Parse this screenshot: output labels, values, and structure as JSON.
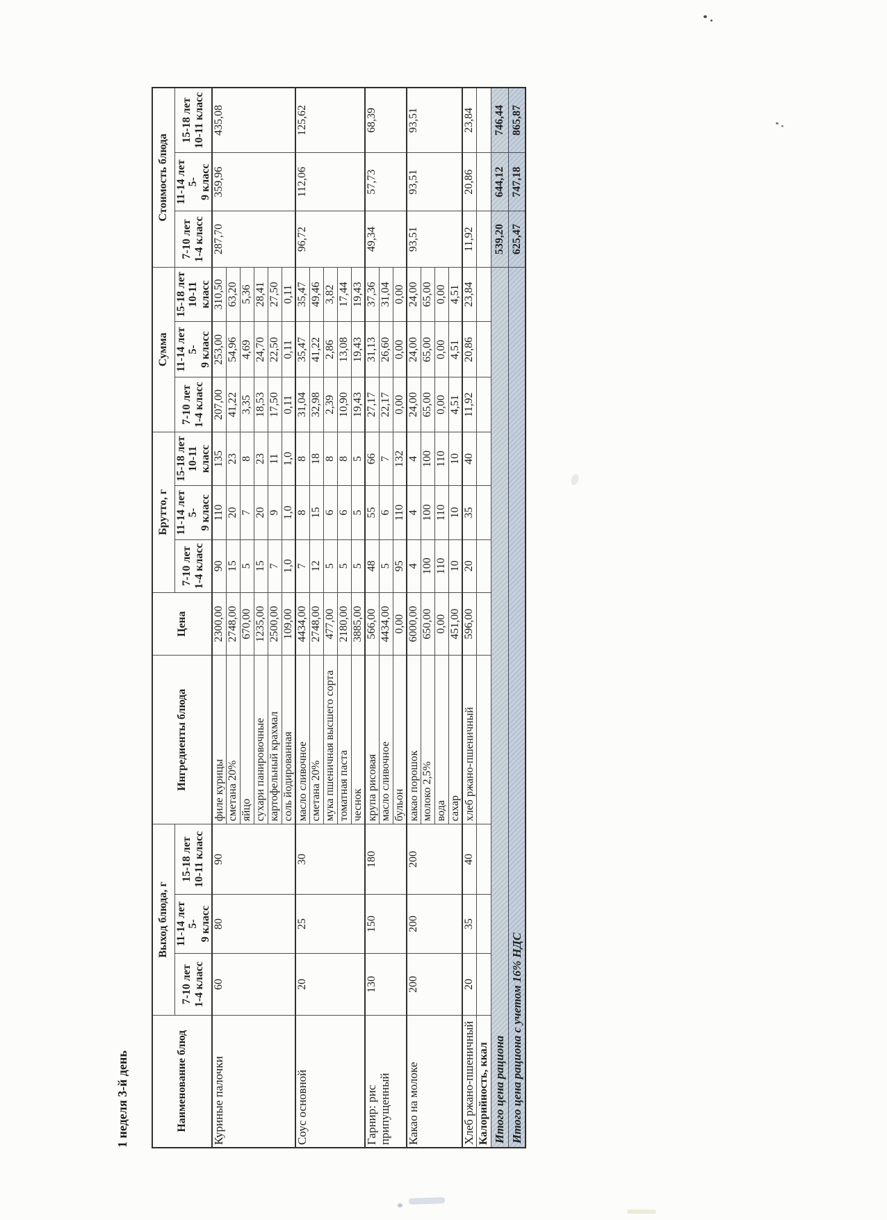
{
  "title": "1 неделя 3-й день",
  "table": {
    "headers": {
      "name": "Наименование блюд",
      "vyhod": "Выход блюда, г",
      "ingredients": "Ингредиенты блюда",
      "price": "Цена",
      "brutto": "Брутто, г",
      "summa": "Сумма",
      "cost": "Стоимость блюда",
      "age_groups": [
        "7-10 лет\n1-4 класс",
        "11-14 лет 5-\n9 класс",
        "15-18 лет\n10-11 класс"
      ]
    },
    "dishes": [
      {
        "name": "Куриные палочки",
        "vyhod": [
          "60",
          "80",
          "90"
        ],
        "cost": [
          "287,70",
          "359,96",
          "435,08"
        ],
        "ingredients": [
          {
            "name": "филе курицы",
            "price": "2300,00",
            "brutto": [
              "90",
              "110",
              "135"
            ],
            "summa": [
              "207,00",
              "253,00",
              "310,50"
            ]
          },
          {
            "name": "сметана 20%",
            "price": "2748,00",
            "brutto": [
              "15",
              "20",
              "23"
            ],
            "summa": [
              "41,22",
              "54,96",
              "63,20"
            ]
          },
          {
            "name": "яйцо",
            "price": "670,00",
            "brutto": [
              "5",
              "7",
              "8"
            ],
            "summa": [
              "3,35",
              "4,69",
              "5,36"
            ]
          },
          {
            "name": "сухари панировочные",
            "price": "1235,00",
            "brutto": [
              "15",
              "20",
              "23"
            ],
            "summa": [
              "18,53",
              "24,70",
              "28,41"
            ]
          },
          {
            "name": "картофельный крахмал",
            "price": "2500,00",
            "brutto": [
              "7",
              "9",
              "11"
            ],
            "summa": [
              "17,50",
              "22,50",
              "27,50"
            ]
          },
          {
            "name": "соль йодированная",
            "price": "109,00",
            "brutto": [
              "1,0",
              "1,0",
              "1,0"
            ],
            "summa": [
              "0,11",
              "0,11",
              "0,11"
            ]
          }
        ]
      },
      {
        "name": "Соус основной",
        "vyhod": [
          "20",
          "25",
          "30"
        ],
        "cost": [
          "96,72",
          "112,06",
          "125,62"
        ],
        "ingredients": [
          {
            "name": "масло сливочное",
            "price": "4434,00",
            "brutto": [
              "7",
              "8",
              "8"
            ],
            "summa": [
              "31,04",
              "35,47",
              "35,47"
            ]
          },
          {
            "name": "сметана 20%",
            "price": "2748,00",
            "brutto": [
              "12",
              "15",
              "18"
            ],
            "summa": [
              "32,98",
              "41,22",
              "49,46"
            ]
          },
          {
            "name": "мука пшеничная высшего сорта",
            "price": "477,00",
            "brutto": [
              "5",
              "6",
              "8"
            ],
            "summa": [
              "2,39",
              "2,86",
              "3,82"
            ]
          },
          {
            "name": "томатная паста",
            "price": "2180,00",
            "brutto": [
              "5",
              "6",
              "8"
            ],
            "summa": [
              "10,90",
              "13,08",
              "17,44"
            ]
          },
          {
            "name": "чеснок",
            "price": "3885,00",
            "brutto": [
              "5",
              "5",
              "5"
            ],
            "summa": [
              "19,43",
              "19,43",
              "19,43"
            ]
          }
        ]
      },
      {
        "name": "Гарнир: рис припущенный",
        "vyhod": [
          "130",
          "150",
          "180"
        ],
        "cost": [
          "49,34",
          "57,73",
          "68,39"
        ],
        "ingredients": [
          {
            "name": "крупа рисовая",
            "price": "566,00",
            "brutto": [
              "48",
              "55",
              "66"
            ],
            "summa": [
              "27,17",
              "31,13",
              "37,36"
            ]
          },
          {
            "name": "масло сливочное",
            "price": "4434,00",
            "brutto": [
              "5",
              "6",
              "7"
            ],
            "summa": [
              "22,17",
              "26,60",
              "31,04"
            ]
          },
          {
            "name": "бульон",
            "price": "0,00",
            "brutto": [
              "95",
              "110",
              "132"
            ],
            "summa": [
              "0,00",
              "0,00",
              "0,00"
            ]
          }
        ]
      },
      {
        "name": "Какао на молоке",
        "vyhod": [
          "200",
          "200",
          "200"
        ],
        "cost": [
          "93,51",
          "93,51",
          "93,51"
        ],
        "ingredients": [
          {
            "name": "какао порошок",
            "price": "6000,00",
            "brutto": [
              "4",
              "4",
              "4"
            ],
            "summa": [
              "24,00",
              "24,00",
              "24,00"
            ]
          },
          {
            "name": "молоко 2,5%",
            "price": "650,00",
            "brutto": [
              "100",
              "100",
              "100"
            ],
            "summa": [
              "65,00",
              "65,00",
              "65,00"
            ]
          },
          {
            "name": "вода",
            "price": "0,00",
            "brutto": [
              "110",
              "110",
              "110"
            ],
            "summa": [
              "0,00",
              "0,00",
              "0,00"
            ]
          },
          {
            "name": "сахар",
            "price": "451,00",
            "brutto": [
              "10",
              "10",
              "10"
            ],
            "summa": [
              "4,51",
              "4,51",
              "4,51"
            ]
          }
        ]
      },
      {
        "name": "Хлеб ржано-пшеничный",
        "vyhod": [
          "20",
          "35",
          "40"
        ],
        "cost": [
          "11,92",
          "20,86",
          "23,84"
        ],
        "ingredients": [
          {
            "name": "хлеб ржано-пшеничный",
            "price": "596,00",
            "brutto": [
              "20",
              "35",
              "40"
            ],
            "summa": [
              "11,92",
              "20,86",
              "23,84"
            ]
          }
        ]
      }
    ],
    "kcal_row_label": "Калорийность, ккал",
    "totals": [
      {
        "label": "Итого цена рациона",
        "values": [
          "539,20",
          "644,12",
          "746,44"
        ]
      },
      {
        "label": "Итого цена рациона с учетом 16% НДС",
        "values": [
          "625,47",
          "747,18",
          "865,87"
        ]
      }
    ]
  }
}
